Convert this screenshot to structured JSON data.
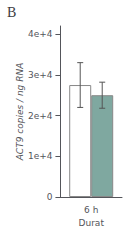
{
  "chart_data": {
    "type": "bar",
    "title": "B",
    "categories": [
      "6 h"
    ],
    "series": [
      {
        "color": "#ffffff",
        "values": [
          27500
        ],
        "errors": [
          5500
        ]
      },
      {
        "color": "#7fa8a0",
        "values": [
          25000
        ],
        "errors": [
          3200
        ]
      }
    ],
    "xlabel": "Durat",
    "ylabel": "ACT9 copies / ng RNA",
    "ylim": [
      0,
      42000
    ],
    "yticks": [
      0,
      {
        "value": 10000,
        "label": "1e+4"
      },
      {
        "value": 20000,
        "label": "2e+4"
      },
      {
        "value": 30000,
        "label": "3e+4"
      },
      {
        "value": 40000,
        "label": "4e+4"
      }
    ],
    "grid": false
  }
}
